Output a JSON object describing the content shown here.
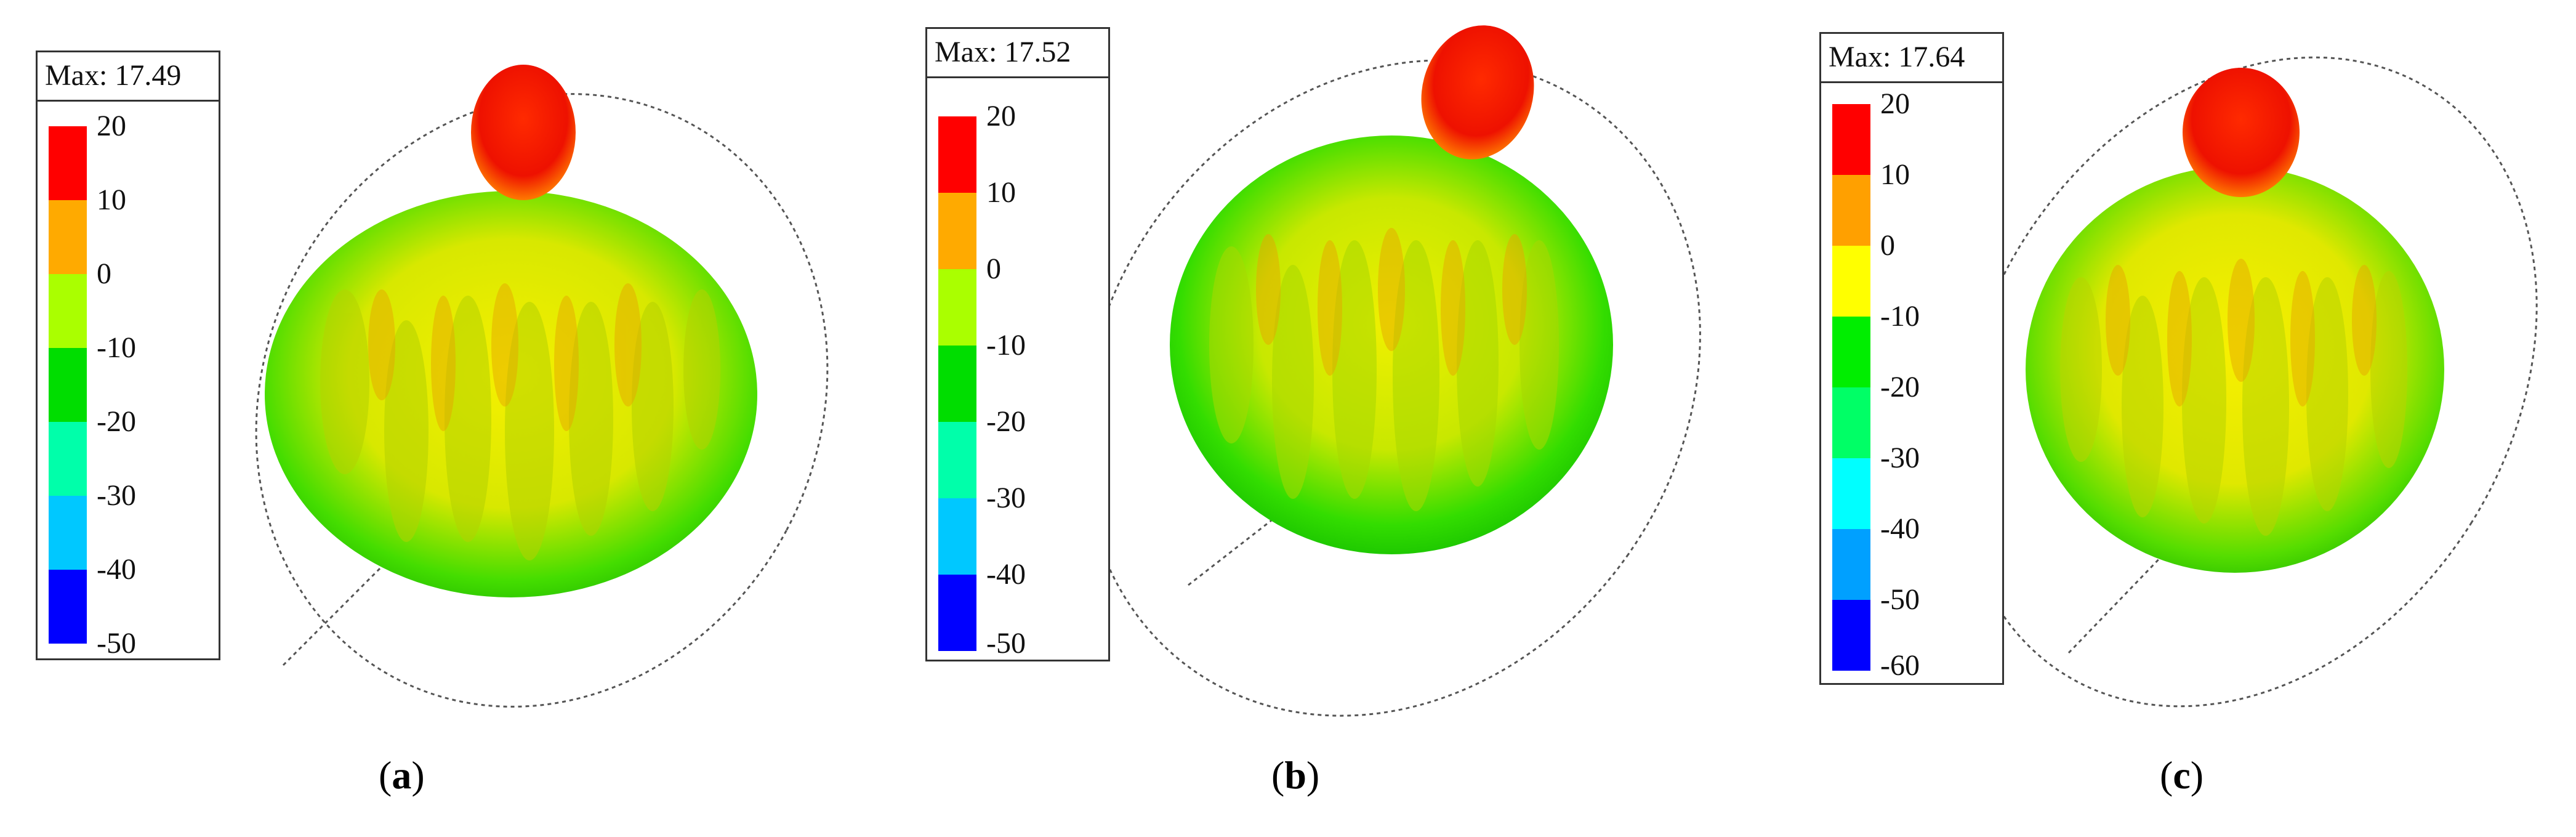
{
  "panels": [
    {
      "id": "a",
      "max_label": "Max: 17.49",
      "legend_ticks": [
        "20",
        "10",
        "0",
        "-10",
        "-20",
        "-30",
        "-40",
        "-50"
      ],
      "legend_colors": [
        "#ff0000",
        "#ffaa00",
        "#aaff00",
        "#00dd00",
        "#00ffaa",
        "#00c8ff",
        "#0000ff"
      ],
      "caption_letter": "a"
    },
    {
      "id": "b",
      "max_label": "Max: 17.52",
      "legend_ticks": [
        "20",
        "10",
        "0",
        "-10",
        "-20",
        "-30",
        "-40",
        "-50"
      ],
      "legend_colors": [
        "#ff0000",
        "#ffaa00",
        "#aaff00",
        "#00dd00",
        "#00ffaa",
        "#00c8ff",
        "#0000ff"
      ],
      "caption_letter": "b"
    },
    {
      "id": "c",
      "max_label": "Max: 17.64",
      "legend_ticks": [
        "20",
        "10",
        "0",
        "-10",
        "-20",
        "-30",
        "-40",
        "-50",
        "-60"
      ],
      "legend_colors": [
        "#ff0000",
        "#ffa000",
        "#ffff00",
        "#00ee00",
        "#00ff66",
        "#00ffff",
        "#00a0ff",
        "#0000ff"
      ],
      "caption_letter": "c"
    }
  ]
}
